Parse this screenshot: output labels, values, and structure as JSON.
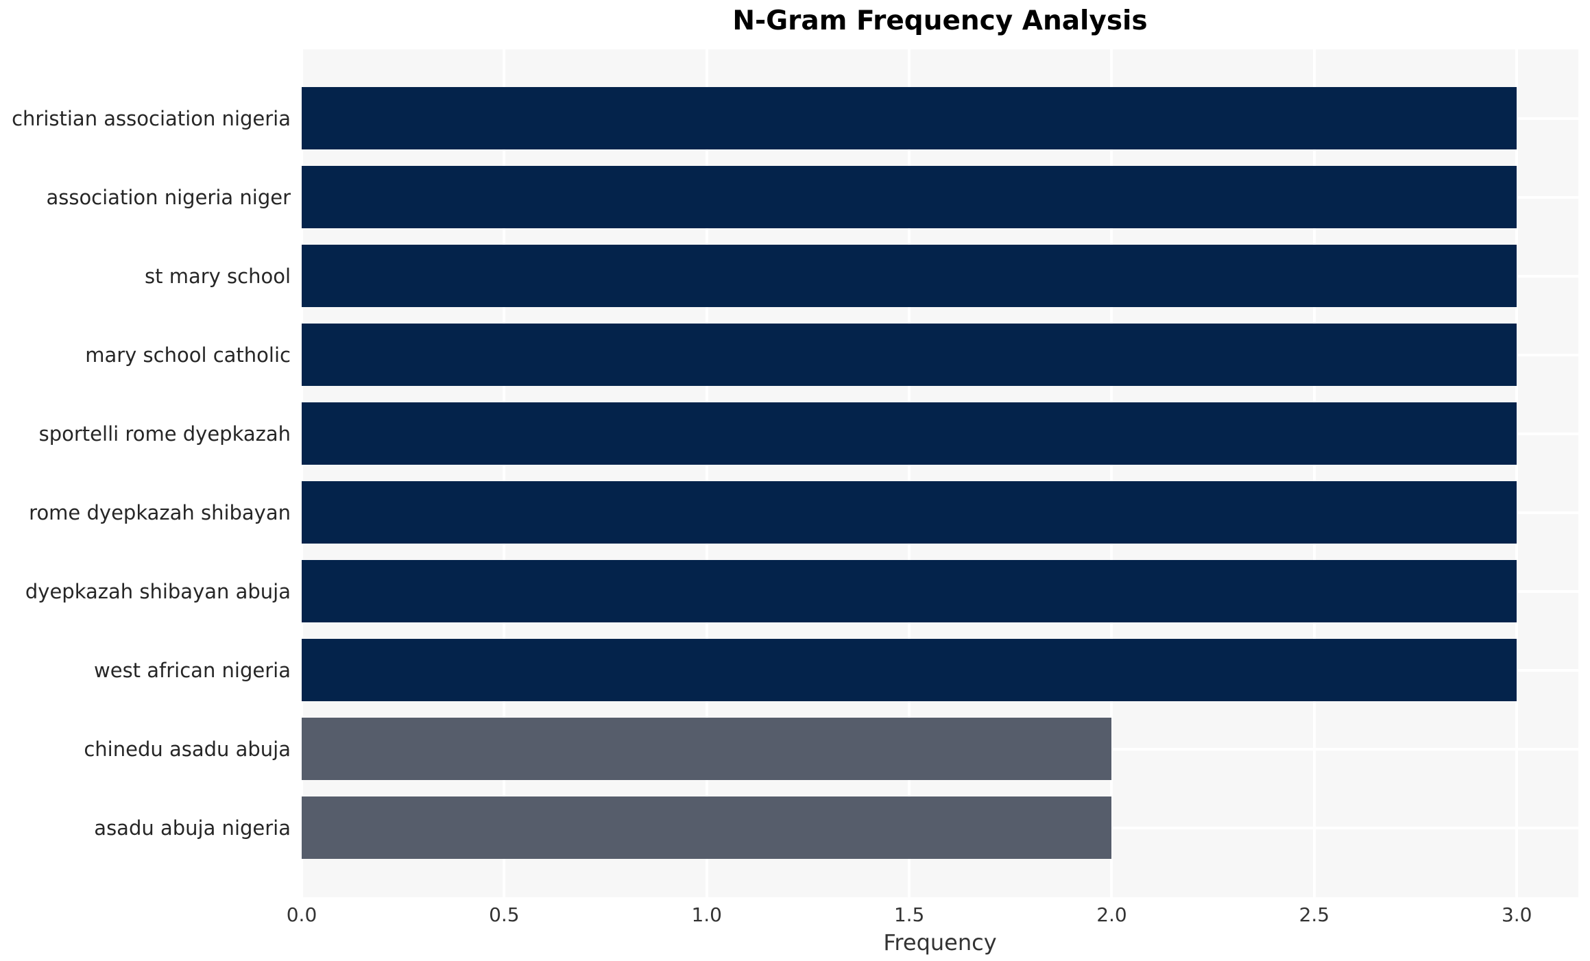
{
  "chart_data": {
    "type": "bar",
    "orientation": "horizontal",
    "title": "N-Gram Frequency Analysis",
    "xlabel": "Frequency",
    "ylabel": "",
    "categories": [
      "christian association nigeria",
      "association nigeria niger",
      "st mary school",
      "mary school catholic",
      "sportelli rome dyepkazah",
      "rome dyepkazah shibayan",
      "dyepkazah shibayan abuja",
      "west african nigeria",
      "chinedu asadu abuja",
      "asadu abuja nigeria"
    ],
    "values": [
      3,
      3,
      3,
      3,
      3,
      3,
      3,
      3,
      2,
      2
    ],
    "bar_colors": [
      "#04234b",
      "#04234b",
      "#04234b",
      "#04234b",
      "#04234b",
      "#04234b",
      "#04234b",
      "#04234b",
      "#565d6b",
      "#565d6b"
    ],
    "xlim": [
      0,
      3.152
    ],
    "xticks": [
      0.0,
      0.5,
      1.0,
      1.5,
      2.0,
      2.5,
      3.0
    ],
    "xtick_labels": [
      "0.0",
      "0.5",
      "1.0",
      "1.5",
      "2.0",
      "2.5",
      "3.0"
    ],
    "grid": true,
    "legend": false,
    "colors": {
      "high_bar": "#04234b",
      "low_bar": "#565d6b",
      "plot_bg": "#f7f7f7",
      "grid": "#ffffff",
      "title_text": "#000000",
      "label_text": "#262626",
      "tick_text": "#333333"
    }
  }
}
